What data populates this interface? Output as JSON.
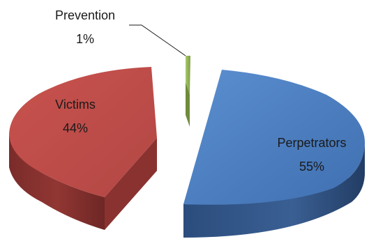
{
  "chart_data": {
    "type": "pie",
    "title": "",
    "categories": [
      "Perpetrators",
      "Victims",
      "Prevention"
    ],
    "values": [
      55,
      44,
      1
    ],
    "value_labels": [
      "55%",
      "44%",
      "1%"
    ],
    "colors": [
      "#4f81bd",
      "#c0504d",
      "#9bbb59"
    ],
    "style": "3d-exploded"
  }
}
